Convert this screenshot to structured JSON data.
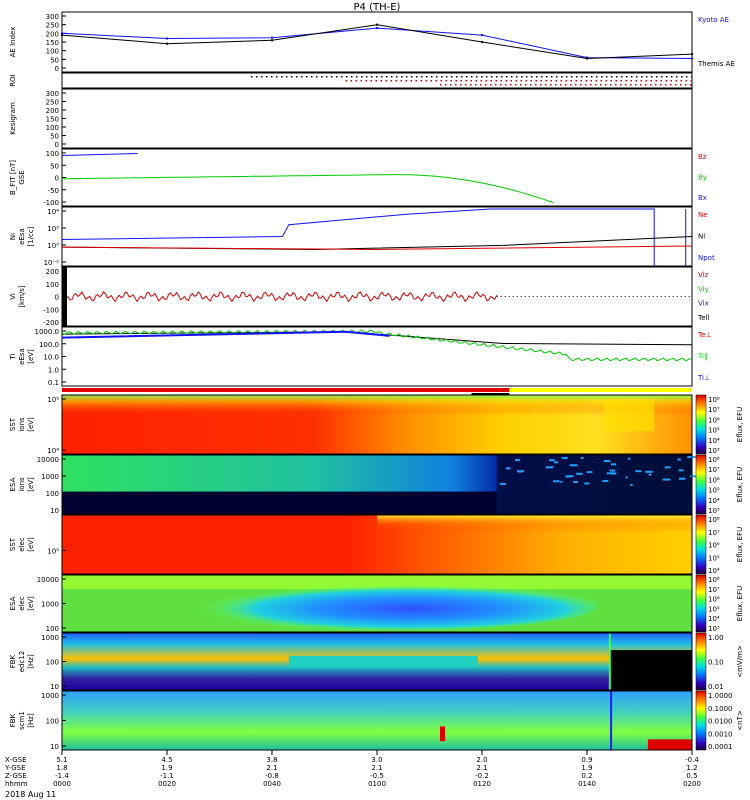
{
  "title": "P4 (TH-E)",
  "date_label": "2018 Aug 11",
  "colors": {
    "blue": "#1010ff",
    "black": "#000000",
    "red": "#e00000",
    "green": "#00cc00",
    "bar_red": "#e00000",
    "bar_yellow": "#ffff00"
  },
  "panels": [
    {
      "id": "ae",
      "ylabel": "AE Index",
      "ticks": [
        "300",
        "250",
        "200",
        "150",
        "100",
        "50",
        "0"
      ],
      "legend": [
        {
          "text": "Kyoto AE",
          "color": "#1010ff"
        },
        {
          "text": "Themis AE",
          "color": "#000000"
        }
      ]
    },
    {
      "id": "roi",
      "ylabel": "ROI",
      "ticks": [],
      "legend": []
    },
    {
      "id": "kp",
      "ylabel": "Kesigram",
      "ticks": [
        "300",
        "250",
        "200",
        "150",
        "100",
        "50",
        "0"
      ],
      "legend": []
    },
    {
      "id": "bfit",
      "ylabel": "B_FIT [nT]",
      "ylabel2": "GSE",
      "ticks": [
        "100",
        "50",
        "0",
        "-50",
        "-100"
      ],
      "legend": [
        {
          "text": "Bz",
          "color": "#e00000"
        },
        {
          "text": "By",
          "color": "#00cc00"
        },
        {
          "text": "Bx",
          "color": "#1010ff"
        }
      ]
    },
    {
      "id": "ni",
      "ylabel": "Ni",
      "ylabel2": "[1/cc]",
      "ylabel3": "eEsa",
      "ticks": [
        "10⁴",
        "10²",
        "10⁰",
        "10⁻²"
      ],
      "legend": [
        {
          "text": "Ne",
          "color": "#e00000"
        },
        {
          "text": "Ni",
          "color": "#000000"
        },
        {
          "text": "Npot",
          "color": "#1010ff"
        }
      ]
    },
    {
      "id": "vi",
      "ylabel": "Vi",
      "ylabel2": "[km/s]",
      "ticks": [
        "200",
        "100",
        "0",
        "-100",
        "-200"
      ],
      "legend": [
        {
          "text": "Viz",
          "color": "#e00000"
        },
        {
          "text": "Viy",
          "color": "#00cc00"
        },
        {
          "text": "Vix",
          "color": "#1010ff"
        },
        {
          "text": "Tell",
          "color": "#000000"
        }
      ]
    },
    {
      "id": "ti",
      "ylabel": "Ti",
      "ylabel2": "[eV]",
      "ylabel3": "eEsa",
      "ticks": [
        "1000.0",
        "100.0",
        "10.0",
        "1.0",
        "0.1"
      ],
      "legend": [
        {
          "text": "Te⊥",
          "color": "#e00000"
        },
        {
          "text": "Ti‖",
          "color": "#00cc00"
        },
        {
          "text": "Ti⊥",
          "color": "#1010ff"
        }
      ]
    },
    {
      "id": "sst1",
      "ylabel": "SST",
      "ylabel2": "[eV]",
      "ylabel3": "ions",
      "ticks": [
        "10⁵",
        "10⁴"
      ],
      "cbar_label": "Eflux, EFU",
      "cbar_ticks": [
        "10⁸",
        "10⁷",
        "10⁶",
        "10⁵",
        "10⁴",
        "10³"
      ]
    },
    {
      "id": "esa1",
      "ylabel": "ESA",
      "ylabel2": "[eV]",
      "ylabel3": "ions",
      "ticks": [
        "10000",
        "1000",
        "100",
        "10"
      ],
      "cbar_label": "Eflux, EFU",
      "cbar_ticks": [
        "10⁸",
        "10⁷",
        "10⁶",
        "10⁵",
        "10⁴",
        "10³"
      ]
    },
    {
      "id": "sst2",
      "ylabel": "SST",
      "ylabel2": "[eV]",
      "ylabel3": "elec",
      "ticks": [
        "10⁵"
      ],
      "cbar_label": "Eflux, EFU",
      "cbar_ticks": [
        "10⁸",
        "10⁷",
        "10⁶",
        "10⁵",
        "10⁴"
      ]
    },
    {
      "id": "esa2",
      "ylabel": "ESA",
      "ylabel2": "[eV]",
      "ylabel3": "elec",
      "ticks": [
        "10000",
        "1000",
        "100"
      ],
      "cbar_label": "Eflux, EFU",
      "cbar_ticks": [
        "10⁸",
        "10⁷",
        "10⁶",
        "10⁵",
        "10⁴",
        "10³"
      ]
    },
    {
      "id": "fbk1",
      "ylabel": "FBK",
      "ylabel2": "[Hz]",
      "ylabel3": "edc12",
      "ticks": [
        "1000",
        "100",
        "10"
      ],
      "cbar_label": "<mV/m>",
      "cbar_ticks": [
        "1.00",
        "0.10",
        "0.01"
      ]
    },
    {
      "id": "fbk2",
      "ylabel": "FBK",
      "ylabel2": "[Hz]",
      "ylabel3": "scm1",
      "ticks": [
        "1000",
        "100",
        "10"
      ],
      "cbar_label": "<nT>",
      "cbar_ticks": [
        "1.0000",
        "0.1000",
        "0.0100",
        "0.0010",
        "0.0001"
      ]
    }
  ],
  "x_axis": {
    "row_labels": [
      "X-GSE",
      "Y-GSE",
      "Z-GSE",
      "hhmm"
    ],
    "columns": [
      {
        "x": "5.1",
        "y": "1.8",
        "z": "-1.4",
        "t": "0000"
      },
      {
        "x": "4.5",
        "y": "1.9",
        "z": "-1.1",
        "t": "0020"
      },
      {
        "x": "3.8",
        "y": "2.1",
        "z": "-0.8",
        "t": "0040"
      },
      {
        "x": "3.0",
        "y": "2.1",
        "z": "-0.5",
        "t": "0100"
      },
      {
        "x": "2.0",
        "y": "2.1",
        "z": "-0.2",
        "t": "0120"
      },
      {
        "x": "0.9",
        "y": "1.9",
        "z": "0.2",
        "t": "0140"
      },
      {
        "x": "-0.4",
        "y": "1.2",
        "z": "0.5",
        "t": "0200"
      }
    ]
  },
  "chart_data": {
    "type": "line",
    "title": "P4 (TH-E)",
    "x": [
      "0000",
      "0020",
      "0040",
      "0100",
      "0120",
      "0140",
      "0200"
    ],
    "xlabel": "hhmm",
    "series": [
      {
        "name": "Kyoto AE",
        "values": [
          200,
          170,
          175,
          230,
          190,
          60,
          55
        ]
      },
      {
        "name": "Themis AE",
        "values": [
          190,
          140,
          160,
          250,
          150,
          55,
          80
        ]
      }
    ],
    "ylabel": "AE Index",
    "ylim": [
      0,
      300
    ]
  }
}
